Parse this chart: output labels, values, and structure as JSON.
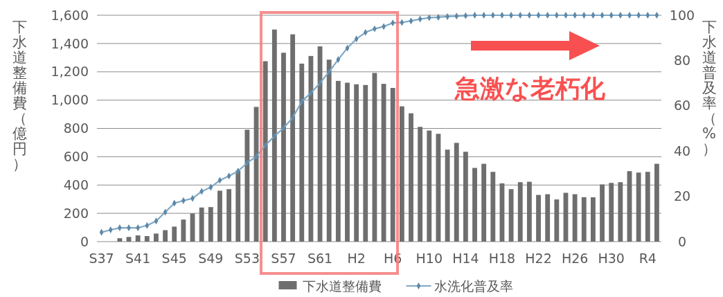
{
  "chart_data": {
    "type": "bar",
    "categories": [
      "S37",
      null,
      null,
      null,
      "S41",
      null,
      null,
      null,
      "S45",
      null,
      null,
      null,
      "S49",
      null,
      null,
      null,
      "S53",
      null,
      null,
      null,
      "S57",
      null,
      null,
      null,
      "S61",
      null,
      null,
      null,
      "H2",
      null,
      null,
      null,
      "H6",
      null,
      null,
      null,
      "H10",
      null,
      null,
      null,
      "H14",
      null,
      null,
      null,
      "H18",
      null,
      null,
      null,
      "H22",
      null,
      null,
      null,
      "H26",
      null,
      null,
      null,
      "H30",
      null,
      null,
      null,
      "R4",
      null
    ],
    "ylabel": "下水道整備費（億円）",
    "y2label": "下水道普及率（%）",
    "series": [
      {
        "name": "下水道整備費",
        "color": "#6e6e6e",
        "values": [
          null,
          null,
          24,
          33,
          44,
          39,
          57,
          81,
          106,
          156,
          199,
          241,
          244,
          360,
          371,
          501,
          791,
          952,
          1275,
          1499,
          1335,
          1465,
          1258,
          1312,
          1380,
          1286,
          1136,
          1123,
          1112,
          1107,
          1192,
          1115,
          1086,
          956,
          907,
          811,
          785,
          762,
          650,
          698,
          635,
          521,
          550,
          493,
          412,
          371,
          420,
          423,
          330,
          335,
          298,
          345,
          335,
          314,
          313,
          404,
          415,
          420,
          498,
          488,
          493,
          550
        ]
      },
      {
        "name": "水洗化普及率",
        "type": "line",
        "axis": "y2",
        "color": "#7fa8c4",
        "marker": "diamond",
        "values": [
          4.1,
          5.2,
          6.1,
          6.1,
          6.1,
          7.1,
          9.1,
          13,
          17,
          18.1,
          19.1,
          22.2,
          24,
          27.1,
          29,
          31.1,
          34.8,
          37.6,
          42.5,
          46.6,
          50.2,
          54.7,
          61.9,
          65.7,
          70,
          75,
          80.4,
          85.5,
          89.5,
          92.4,
          94,
          95,
          96.6,
          96.8,
          97.5,
          98.3,
          98.9,
          99.1,
          99.4,
          99.6,
          99.8,
          100,
          100,
          100,
          100,
          100,
          100,
          100,
          100,
          100,
          100,
          100,
          100,
          100,
          100,
          100,
          100,
          100,
          100,
          100,
          100,
          100
        ]
      }
    ],
    "ylim": [
      0,
      1600
    ],
    "yticks": [
      0,
      {
        "value": 200,
        "label": "200"
      },
      {
        "value": 400,
        "label": "400"
      },
      {
        "value": 600,
        "label": "600"
      },
      {
        "value": 800,
        "label": "800"
      },
      {
        "value": 1000,
        "label": "1,000"
      },
      {
        "value": 1200,
        "label": "1,200"
      },
      {
        "value": 1400,
        "label": "1,400"
      },
      {
        "value": 1600,
        "label": "1,600"
      }
    ],
    "y2lim": [
      0,
      100
    ],
    "y2ticks": [
      0,
      20,
      40,
      60,
      80,
      100
    ],
    "grid": "y",
    "legend": "bottom",
    "annotations": [
      "急激な老朽化"
    ]
  }
}
